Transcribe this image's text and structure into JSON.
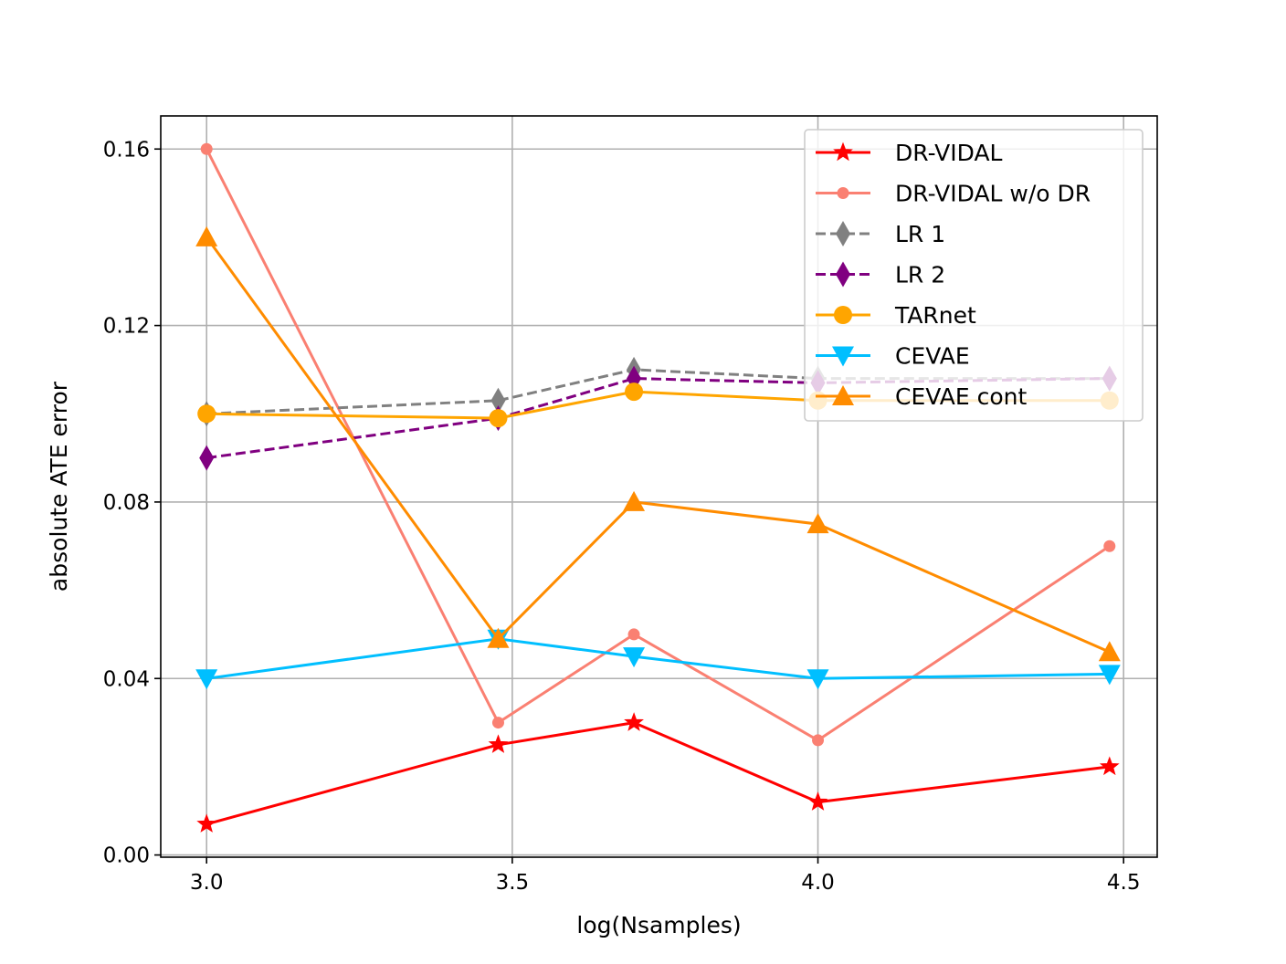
{
  "chart_data": {
    "type": "line",
    "title": "",
    "xlabel": "log(Nsamples)",
    "ylabel": "absolute ATE error",
    "xlim": [
      2.925,
      4.555
    ],
    "ylim": [
      -0.0005,
      0.1675
    ],
    "xticks": [
      3.0,
      3.5,
      4.0,
      4.5
    ],
    "xtick_labels": [
      "3.0",
      "3.5",
      "4.0",
      "4.5"
    ],
    "yticks": [
      0.0,
      0.04,
      0.08,
      0.12,
      0.16
    ],
    "ytick_labels": [
      "0.00",
      "0.04",
      "0.08",
      "0.12",
      "0.16"
    ],
    "grid": true,
    "legend_position": "top-right",
    "x": [
      3.0,
      3.477,
      3.699,
      4.0,
      4.477
    ],
    "series": [
      {
        "name": "DR-VIDAL",
        "values": [
          0.007,
          0.025,
          0.03,
          0.012,
          0.02
        ],
        "color": "#ff0000",
        "marker": "star",
        "dashed": false
      },
      {
        "name": "DR-VIDAL w/o DR",
        "values": [
          0.16,
          0.03,
          0.05,
          0.026,
          0.07
        ],
        "color": "#fa8072",
        "marker": "dot",
        "dashed": false
      },
      {
        "name": "LR 1",
        "values": [
          0.1,
          0.103,
          0.11,
          0.108,
          0.108
        ],
        "color": "#808080",
        "marker": "thin_diamond",
        "dashed": true
      },
      {
        "name": "LR 2",
        "values": [
          0.09,
          0.099,
          0.108,
          0.107,
          0.108
        ],
        "color": "#800080",
        "marker": "thin_diamond",
        "dashed": true
      },
      {
        "name": "TARnet",
        "values": [
          0.1,
          0.099,
          0.105,
          0.103,
          0.103
        ],
        "color": "#ffa500",
        "marker": "circle",
        "dashed": false
      },
      {
        "name": "CEVAE",
        "values": [
          0.04,
          0.049,
          0.045,
          0.04,
          0.041
        ],
        "color": "#00bfff",
        "marker": "triangle_down",
        "dashed": false
      },
      {
        "name": "CEVAE cont",
        "values": [
          0.14,
          0.049,
          0.08,
          0.075,
          0.046
        ],
        "color": "#ff8c00",
        "marker": "triangle_up",
        "dashed": false
      }
    ]
  }
}
